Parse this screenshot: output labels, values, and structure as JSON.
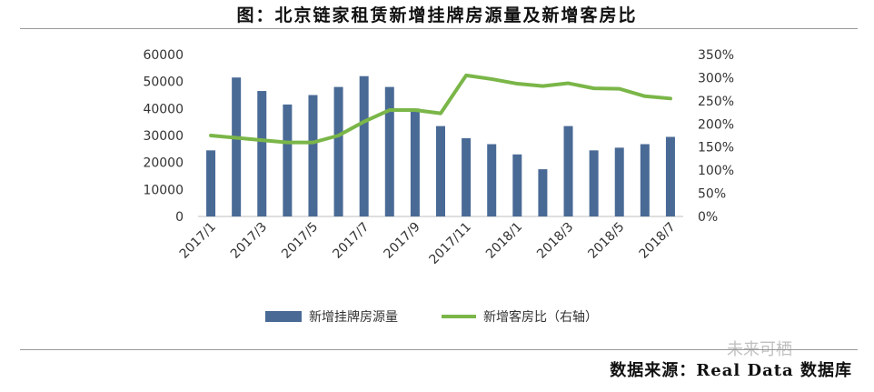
{
  "title": "图：北京链家租赁新增挂牌房源量及新增客房比",
  "source": "数据来源：Real Data 数据库",
  "watermark": "未来可栖",
  "chart_data": {
    "type": "bar",
    "x": [
      "2017/1",
      "2017/2",
      "2017/3",
      "2017/4",
      "2017/5",
      "2017/6",
      "2017/7",
      "2017/8",
      "2017/9",
      "2017/10",
      "2017/11",
      "2017/12",
      "2018/1",
      "2018/2",
      "2018/3",
      "2018/4",
      "2018/5",
      "2018/6",
      "2018/7"
    ],
    "xtick_labels": [
      "2017/1",
      "2017/3",
      "2017/5",
      "2017/7",
      "2017/9",
      "2017/11",
      "2018/1",
      "2018/3",
      "2018/5",
      "2018/7"
    ],
    "series": [
      {
        "name": "新增挂牌房源量",
        "type": "bar",
        "axis": "left",
        "color": "#4a6a96",
        "values": [
          24500,
          51500,
          46500,
          41500,
          45000,
          48000,
          52000,
          48000,
          40000,
          33500,
          29000,
          26800,
          23000,
          17500,
          33500,
          24500,
          25500,
          26800,
          29500
        ]
      },
      {
        "name": "新增客房比（右轴）",
        "type": "line",
        "axis": "right",
        "color": "#7ab648",
        "values": [
          1.75,
          1.7,
          1.65,
          1.6,
          1.6,
          1.75,
          2.05,
          2.3,
          2.3,
          2.23,
          3.05,
          2.97,
          2.87,
          2.82,
          2.88,
          2.77,
          2.76,
          2.6,
          2.55
        ]
      }
    ],
    "yleft": {
      "min": 0,
      "max": 60000,
      "ticks": [
        "0",
        "10000",
        "20000",
        "30000",
        "40000",
        "50000",
        "60000"
      ]
    },
    "yright": {
      "min": 0,
      "max": 3.5,
      "ticks": [
        "0%",
        "50%",
        "100%",
        "150%",
        "200%",
        "250%",
        "300%",
        "350%"
      ]
    },
    "legend_position": "bottom",
    "grid": false
  }
}
